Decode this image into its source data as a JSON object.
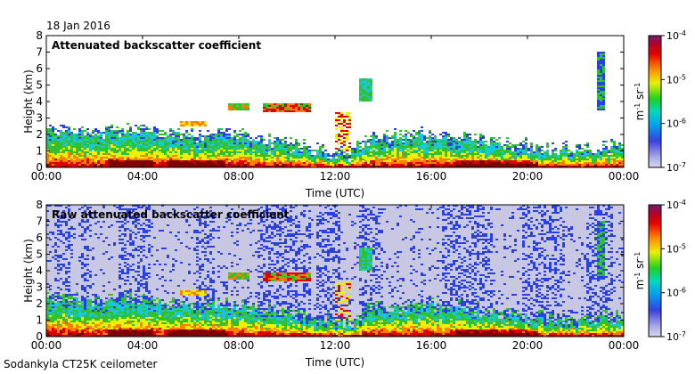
{
  "header": {
    "date": "18 Jan 2016"
  },
  "footer": {
    "instrument": "Sodankyla CT25K ceilometer"
  },
  "colors": {
    "noise": "#c8c8e4",
    "low": "#2a40e0",
    "cyan": "#18c8d8",
    "green": "#30c030",
    "yellow": "#f0f000",
    "orange": "#ff8000",
    "red": "#e00000",
    "dark": "#800000"
  },
  "chart_data": [
    {
      "type": "heatmap",
      "title": "Attenuated backscatter coefficient",
      "xlabel": "Time (UTC)",
      "ylabel": "Height (km)",
      "x_ticks": [
        "00:00",
        "04:00",
        "08:00",
        "12:00",
        "16:00",
        "20:00",
        "00:00"
      ],
      "y_ticks": [
        "0",
        "1",
        "2",
        "3",
        "4",
        "5",
        "6",
        "7",
        "8"
      ],
      "xlim_hours": [
        0,
        24
      ],
      "ylim_km": [
        0,
        8
      ],
      "colorbar": {
        "label": "m-1 sr-1",
        "ticks": [
          {
            "base": "10",
            "exp": "-4"
          },
          {
            "base": "10",
            "exp": "-5"
          },
          {
            "base": "10",
            "exp": "-6"
          },
          {
            "base": "10",
            "exp": "-7"
          }
        ]
      }
    },
    {
      "type": "heatmap",
      "title": "Raw attenuated backscatter coefficient",
      "xlabel": "Time (UTC)",
      "ylabel": "Height (km)",
      "x_ticks": [
        "00:00",
        "04:00",
        "08:00",
        "12:00",
        "16:00",
        "20:00",
        "00:00"
      ],
      "y_ticks": [
        "0",
        "1",
        "2",
        "3",
        "4",
        "5",
        "6",
        "7",
        "8"
      ],
      "xlim_hours": [
        0,
        24
      ],
      "ylim_km": [
        0,
        8
      ],
      "colorbar": {
        "label": "m-1 sr-1",
        "ticks": [
          {
            "base": "10",
            "exp": "-4"
          },
          {
            "base": "10",
            "exp": "-5"
          },
          {
            "base": "10",
            "exp": "-6"
          },
          {
            "base": "10",
            "exp": "-7"
          }
        ]
      }
    }
  ]
}
